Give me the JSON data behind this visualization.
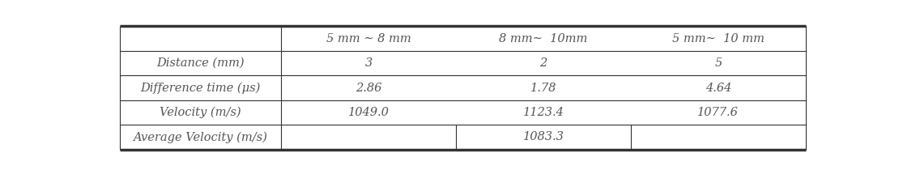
{
  "col_headers": [
    "",
    "5 mm ∼ 8 mm",
    "8 mm∼  10mm",
    "5 mm∼  10 mm"
  ],
  "rows": [
    [
      "Distance (mm)",
      "3",
      "2",
      "5"
    ],
    [
      "Difference time (μs)",
      "2.86",
      "1.78",
      "4.64"
    ],
    [
      "Velocity (m/s)",
      "1049.0",
      "1123.4",
      "1077.6"
    ]
  ],
  "last_row_label": "Average Velocity (m/s)",
  "last_row_value": "1083.3",
  "border_color": "#333333",
  "text_color": "#555555",
  "font_size": 10.5,
  "thick_lw": 2.5,
  "thin_lw": 0.8,
  "fig_bg": "#ffffff"
}
